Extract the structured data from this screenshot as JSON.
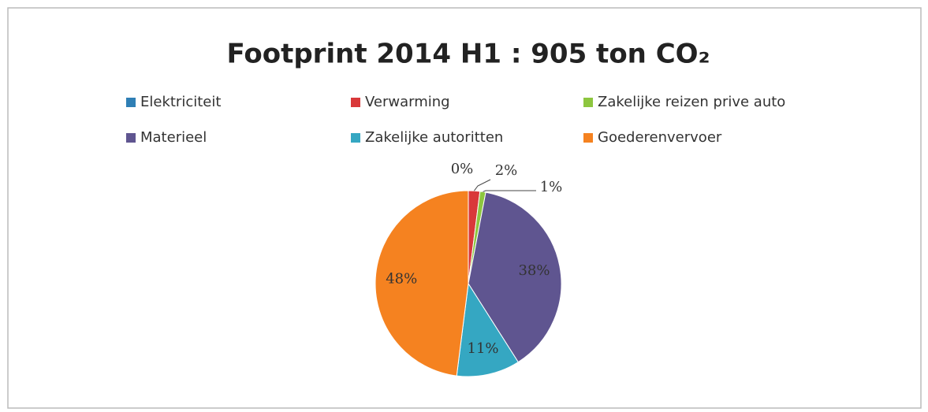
{
  "chart_data": {
    "type": "pie",
    "title": "Footprint 2014 H1 : 905 ton CO₂",
    "categories": [
      "Elektriciteit",
      "Verwarming",
      "Zakelijke reizen prive auto",
      "Materieel",
      "Zakelijke autoritten",
      "Goederenvervoer"
    ],
    "values": [
      0,
      2,
      1,
      38,
      11,
      48
    ],
    "value_labels": [
      "0%",
      "2%",
      "1%",
      "38%",
      "11%",
      "48%"
    ],
    "colors": [
      "#2f7fb5",
      "#d9383a",
      "#8dc63f",
      "#5f5590",
      "#35a7c2",
      "#f58220"
    ]
  }
}
